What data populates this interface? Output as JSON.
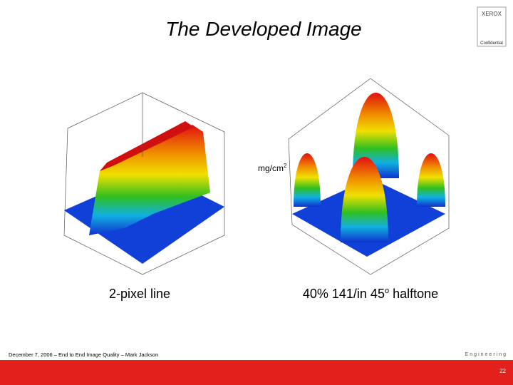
{
  "header": {
    "title": "The Developed Image",
    "logo": "XEROX",
    "confidential": "Confidential"
  },
  "unit_label": {
    "text": "mg/cm",
    "sup": "2"
  },
  "figures": [
    {
      "caption": "2-pixel line"
    },
    {
      "caption": "40% 141/in 45",
      "caption_sup": "o",
      "caption_end": " halftone"
    }
  ],
  "footer": {
    "text": "December 7, 2006 – End to End Image Quality – Mark Jackson",
    "brand": "Engineering",
    "page": "22"
  }
}
